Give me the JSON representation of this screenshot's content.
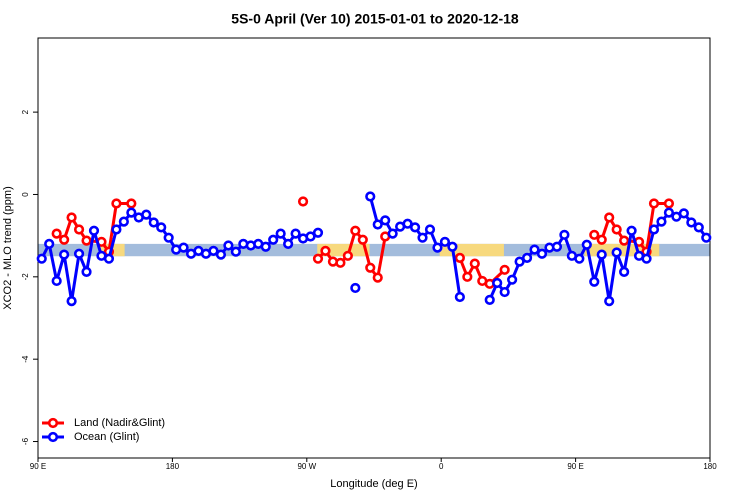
{
  "chart_data": {
    "type": "line",
    "title": "5S-0 April (Ver 10)   2015-01-01 to 2020-12-18",
    "x_label": "Longitude (deg E)",
    "y_label": "XCO2 - MLO trend (ppm)",
    "xlim": [
      90,
      540
    ],
    "ylim": [
      -6.4,
      3.8
    ],
    "xticks": [
      {
        "value": 90,
        "label": "90 E"
      },
      {
        "value": 180,
        "label": "180"
      },
      {
        "value": 270,
        "label": "90 W"
      },
      {
        "value": 360,
        "label": "0"
      },
      {
        "value": 450,
        "label": "90 E"
      },
      {
        "value": 540,
        "label": "180"
      }
    ],
    "yticks": [
      -6,
      -4,
      -2,
      0,
      2
    ],
    "legend": "bottom-left",
    "band": {
      "ylim": [
        -1.5,
        -1.2
      ],
      "color": "#a3bcdc",
      "segments": [
        {
          "xlim": [
            131,
            148
          ],
          "color": "#f7d97e"
        },
        {
          "xlim": [
            277,
            312
          ],
          "color": "#f7d97e"
        },
        {
          "xlim": [
            359,
            402
          ],
          "color": "#f7d97e"
        },
        {
          "xlim": [
            456,
            506
          ],
          "color": "#f7d97e"
        }
      ]
    },
    "series": [
      {
        "name": "Land (Nadir&Glint)",
        "color": "#ff0000",
        "x": [
          102.5,
          107.5,
          112.5,
          117.5,
          122.5,
          132.5,
          137.5,
          142.5,
          152.5,
          157.5,
          267.5,
          272.5,
          277.5,
          282.5,
          287.5,
          292.5,
          297.5,
          302.5,
          307.5,
          312.5,
          317.5,
          322.5,
          327.5,
          372.5,
          377.5,
          382.5,
          387.5,
          392.5,
          402.5,
          407.5,
          462.5,
          467.5,
          472.5,
          477.5,
          482.5,
          492.5,
          497.5,
          502.5,
          512.5
        ],
        "values": [
          -0.95,
          -1.1,
          -0.56,
          -0.85,
          -1.12,
          -1.15,
          -1.39,
          -0.22,
          -0.22,
          null,
          -0.17,
          null,
          -1.56,
          -1.37,
          -1.63,
          -1.66,
          -1.49,
          -0.88,
          -1.1,
          -1.78,
          -2.02,
          -1.02,
          null,
          -1.54,
          -2.0,
          -1.68,
          -2.1,
          -2.17,
          -1.83,
          null,
          -0.98,
          -1.1,
          -0.56,
          -0.85,
          -1.12,
          -1.15,
          -1.39,
          -0.22,
          -0.22
        ]
      },
      {
        "name": "Ocean (Glint)",
        "color": "#0000ff",
        "x": [
          92.5,
          97.5,
          102.5,
          107.5,
          112.5,
          117.5,
          122.5,
          127.5,
          132.5,
          137.5,
          142.5,
          147.5,
          152.5,
          157.5,
          162.5,
          167.5,
          172.5,
          177.5,
          182.5,
          187.5,
          192.5,
          197.5,
          202.5,
          207.5,
          212.5,
          217.5,
          222.5,
          227.5,
          232.5,
          237.5,
          242.5,
          247.5,
          252.5,
          257.5,
          262.5,
          267.5,
          272.5,
          277.5,
          282.5,
          302.5,
          307.5,
          312.5,
          317.5,
          322.5,
          327.5,
          332.5,
          337.5,
          342.5,
          347.5,
          352.5,
          357.5,
          362.5,
          367.5,
          372.5,
          377.5,
          392.5,
          397.5,
          402.5,
          407.5,
          412.5,
          417.5,
          422.5,
          427.5,
          432.5,
          437.5,
          442.5,
          447.5,
          452.5,
          457.5,
          462.5,
          467.5,
          472.5,
          477.5,
          482.5,
          487.5,
          492.5,
          497.5,
          502.5,
          507.5,
          512.5,
          517.5,
          522.5,
          527.5,
          532.5,
          537.5
        ],
        "values": [
          -1.56,
          -1.2,
          -2.1,
          -1.46,
          -2.59,
          -1.44,
          -1.88,
          -0.88,
          -1.49,
          -1.56,
          -0.85,
          -0.66,
          -0.44,
          -0.56,
          -0.49,
          -0.68,
          -0.8,
          -1.05,
          -1.34,
          -1.29,
          -1.44,
          -1.37,
          -1.44,
          -1.37,
          -1.46,
          -1.24,
          -1.39,
          -1.2,
          -1.24,
          -1.2,
          -1.27,
          -1.1,
          -0.95,
          -1.2,
          -0.95,
          -1.07,
          -1.02,
          -0.93,
          null,
          -2.27,
          null,
          -0.05,
          -0.73,
          -0.63,
          -0.95,
          -0.78,
          -0.71,
          -0.8,
          -1.05,
          -0.85,
          -1.29,
          -1.15,
          -1.27,
          -2.49,
          null,
          -2.56,
          -2.15,
          -2.37,
          -2.07,
          -1.63,
          -1.54,
          -1.34,
          -1.44,
          -1.29,
          -1.27,
          -0.98,
          -1.49,
          -1.56,
          -1.22,
          -2.12,
          -1.46,
          -2.59,
          -1.41,
          -1.88,
          -0.88,
          -1.49,
          -1.56,
          -0.85,
          -0.66,
          -0.44,
          -0.54,
          -0.46,
          -0.68,
          -0.8,
          -1.05
        ]
      }
    ]
  }
}
